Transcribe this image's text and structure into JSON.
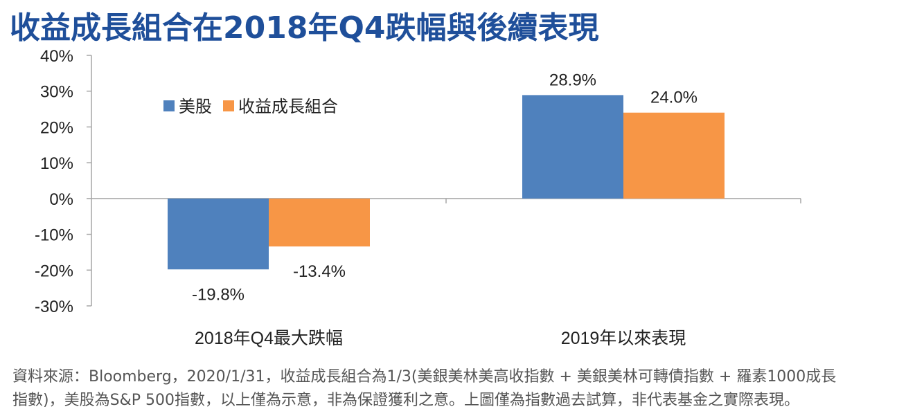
{
  "title": "收益成長組合在2018年Q4跌幅與後續表現",
  "chart_data": {
    "type": "bar",
    "categories": [
      "2018年Q4最大跌幅",
      "2019年以來表現"
    ],
    "series": [
      {
        "name": "美股",
        "values": [
          -19.8,
          28.9
        ],
        "labels": [
          "-19.8%",
          "28.9%"
        ],
        "color": "#4f81bd"
      },
      {
        "name": "收益成長組合",
        "values": [
          -13.4,
          24.0
        ],
        "labels": [
          "-13.4%",
          "24.0%"
        ],
        "color": "#f79646"
      }
    ],
    "yticks": [
      "40%",
      "30%",
      "20%",
      "10%",
      "0%",
      "-10%",
      "-20%",
      "-30%"
    ],
    "ylim": [
      -30,
      40
    ],
    "ylabel": "",
    "xlabel": "",
    "legend_position": "top-left"
  },
  "footnote": {
    "line1": "資料來源：Bloomberg，2020/1/31，收益成長組合為1/3(美銀美林美高收指數 + 美銀美林可轉債指數 + 羅素1000成長",
    "line2": "指數)，美股為S&P 500指數，以上僅為示意，非為保證獲利之意。上圖僅為指數過去試算，非代表基金之實際表現。"
  }
}
